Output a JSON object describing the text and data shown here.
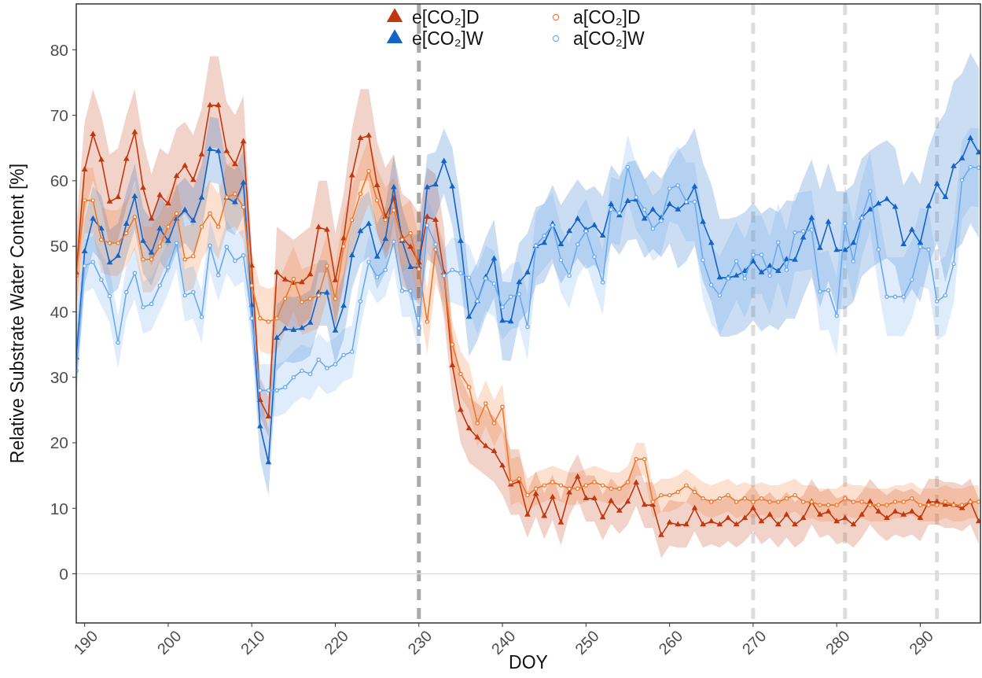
{
  "chart_data": {
    "type": "line",
    "xlabel": "DOY",
    "ylabel": "Relative Substrate Water Content [%]",
    "xlim": [
      189,
      297.2
    ],
    "ylim": [
      -7.5,
      87
    ],
    "xticks": [
      190,
      200,
      210,
      220,
      230,
      240,
      250,
      260,
      270,
      280,
      290
    ],
    "yticks": [
      0,
      10,
      20,
      30,
      40,
      50,
      60,
      70,
      80
    ],
    "legend": "top",
    "line_style": "solid",
    "x": [
      189,
      190,
      191,
      192,
      193,
      194,
      195,
      196,
      197,
      198,
      199,
      200,
      201,
      202,
      203,
      204,
      205,
      206,
      207,
      208,
      209,
      210,
      211,
      212,
      213,
      214,
      215,
      216,
      217,
      218,
      219,
      220,
      221,
      222,
      223,
      224,
      225,
      226,
      227,
      228,
      229,
      230,
      231,
      232,
      233,
      234,
      235,
      236,
      237,
      238,
      239,
      240,
      241,
      242,
      243,
      244,
      245,
      246,
      247,
      248,
      249,
      250,
      251,
      252,
      253,
      254,
      255,
      256,
      257,
      258,
      259,
      260,
      261,
      262,
      263,
      264,
      265,
      266,
      267,
      268,
      269,
      270,
      271,
      272,
      273,
      274,
      275,
      276,
      277,
      278,
      279,
      280,
      281,
      282,
      283,
      284,
      285,
      286,
      287,
      288,
      289,
      290,
      291,
      292,
      293,
      294,
      295,
      296,
      297
    ],
    "ref_lines": [
      {
        "axis": "x",
        "value": 230,
        "color": "#aaaaaa",
        "line_style": "dashed"
      },
      {
        "axis": "x",
        "value": 270,
        "color": "#dddddd",
        "line_style": "dashed"
      },
      {
        "axis": "x",
        "value": 281,
        "color": "#dddddd",
        "line_style": "dashed"
      },
      {
        "axis": "x",
        "value": 292,
        "color": "#dddddd",
        "line_style": "dashed"
      },
      {
        "axis": "y",
        "value": 0,
        "color": "#dadada",
        "line_style": "solid"
      }
    ],
    "series": [
      {
        "name": "e[CO₂]D",
        "color": "#c2380e",
        "marker": "triangle",
        "values": [
          46,
          61.7,
          67.1,
          63.2,
          56.8,
          57.5,
          63.3,
          67.4,
          58.9,
          54.2,
          57.8,
          56.5,
          60.7,
          62.3,
          60.1,
          64,
          71.5,
          71.5,
          64.5,
          62.5,
          66,
          47,
          26.5,
          24,
          46,
          44.9,
          44.4,
          44.5,
          45.7,
          52.9,
          52.5,
          44.8,
          51.2,
          60.8,
          66.5,
          66.9,
          59.3,
          54.5,
          57.3,
          51.3,
          49.9,
          47.5,
          54.5,
          54,
          46,
          31.8,
          25,
          22.2,
          20.8,
          19.5,
          18.7,
          16.5,
          13.6,
          14.1,
          9,
          12.2,
          8.8,
          11.7,
          7.8,
          12.4,
          14.8,
          11.5,
          11.5,
          8.6,
          11.1,
          9.6,
          11,
          13.9,
          10.5,
          10.5,
          5.9,
          7.8,
          7.5,
          7.5,
          10,
          7.5,
          8,
          7.5,
          8.5,
          7.5,
          8.5,
          10,
          8,
          9,
          7.5,
          9,
          7.5,
          8.5,
          11,
          9,
          9.5,
          8,
          8.5,
          7.5,
          9,
          11,
          9.5,
          8.5,
          9.5,
          9,
          9.5,
          8.5,
          11,
          11,
          10.5,
          10.5,
          10,
          11,
          8
        ],
        "lower": [
          39,
          55,
          60,
          56,
          50,
          51,
          56,
          60,
          52,
          47,
          51,
          50,
          54,
          55,
          53,
          57,
          65,
          65,
          58,
          56,
          59,
          44,
          24,
          21,
          39,
          38,
          37,
          38,
          39,
          46,
          46,
          38,
          44,
          54,
          60,
          60,
          52,
          48,
          50,
          44,
          43,
          41,
          48,
          47,
          39,
          27,
          20,
          17,
          16,
          15,
          14,
          12,
          9,
          9,
          5.5,
          8.7,
          5.3,
          8.2,
          4.3,
          8.9,
          11.3,
          8,
          8,
          5.1,
          7.6,
          6.1,
          7.5,
          10.4,
          7,
          7,
          2.4,
          4.3,
          4,
          4,
          6.5,
          4,
          4.5,
          4,
          5,
          4,
          5,
          6.5,
          4.5,
          5.5,
          4,
          5.5,
          4,
          5,
          7.5,
          5.5,
          6,
          4.5,
          5,
          4,
          5.5,
          7.5,
          6,
          5,
          6,
          5.5,
          6,
          5,
          7.5,
          7.5,
          7,
          7,
          6.5,
          7.5,
          4.5
        ],
        "upper": [
          53,
          69,
          74,
          70,
          64,
          65,
          70,
          74,
          66,
          61,
          65,
          64,
          68,
          69,
          67,
          71,
          79,
          79,
          72,
          70,
          73,
          50,
          30,
          27,
          53,
          52,
          51,
          52,
          53,
          60,
          60,
          52,
          58,
          68,
          74,
          74,
          66,
          62,
          64,
          58,
          57,
          55,
          62,
          61,
          53,
          37,
          30,
          27,
          26,
          25,
          24,
          22,
          19,
          19,
          12.5,
          15.7,
          12.3,
          15.2,
          11.3,
          15.9,
          18.3,
          15,
          15,
          12.1,
          14.6,
          13.1,
          14.5,
          17.4,
          14,
          14,
          9.4,
          11.3,
          11,
          11,
          13.5,
          11,
          11.5,
          11,
          12,
          11,
          12,
          13.5,
          11.5,
          12.5,
          11,
          12.5,
          11,
          12,
          14.5,
          12.5,
          13,
          11.5,
          12,
          11,
          12.5,
          14.5,
          13,
          12,
          13,
          12.5,
          13,
          12,
          14.5,
          14.5,
          14,
          14,
          13.5,
          14.5,
          11.5
        ]
      },
      {
        "name": "e[CO₂]W",
        "color": "#1464c8",
        "marker": "triangle",
        "values": [
          33,
          49.2,
          54.2,
          52.7,
          47.5,
          48.5,
          53.4,
          57.6,
          50.8,
          49,
          52.7,
          50.8,
          54.2,
          55.5,
          53.9,
          57.4,
          64.8,
          64.5,
          57.4,
          56.7,
          59.7,
          41,
          22.5,
          17,
          36,
          37.4,
          37.2,
          37.5,
          38.3,
          42.9,
          42.9,
          37.1,
          40.9,
          48.6,
          52.3,
          53.4,
          48.4,
          51.1,
          59,
          50.8,
          46.8,
          46.8,
          59,
          59.4,
          63,
          59.1,
          50.8,
          39.2,
          41.6,
          45.3,
          48.1,
          38.6,
          38.5,
          44.5,
          46,
          50,
          50.5,
          53.4,
          50.3,
          52.3,
          54.2,
          52.5,
          53.2,
          51.6,
          56.4,
          54.7,
          56.9,
          57.1,
          54.2,
          55.6,
          54.3,
          56.4,
          55.6,
          56.7,
          59.1,
          53.7,
          50.5,
          45.2,
          45.2,
          45.5,
          46.2,
          47.7,
          46,
          47,
          46.2,
          48,
          47.9,
          51.3,
          54.3,
          49.7,
          53.7,
          49.4,
          49.4,
          50.5,
          54.4,
          55.6,
          56.5,
          57.2,
          56,
          50.3,
          52.5,
          50.5,
          56.1,
          59.5,
          57.5,
          62.2,
          63.4,
          66.5,
          64.3
        ],
        "lower": [
          28,
          44.2,
          49.2,
          47.7,
          42.5,
          43.5,
          48.4,
          52.6,
          45.8,
          44,
          47.7,
          45.8,
          49.2,
          50.5,
          48.9,
          52.4,
          59.8,
          59.5,
          52.4,
          51.7,
          54.7,
          36,
          17.5,
          12,
          31,
          32.4,
          32.2,
          32.5,
          33.3,
          37.9,
          37.9,
          32.1,
          35.9,
          43.6,
          47.3,
          48.4,
          43.4,
          46.1,
          54,
          45.8,
          41.8,
          41.8,
          54,
          54.4,
          58,
          53.1,
          44.8,
          33.2,
          35.6,
          39.3,
          42.1,
          32.6,
          32.5,
          38.5,
          40,
          44,
          44.5,
          47.4,
          44.3,
          46.3,
          48.2,
          46.5,
          47.2,
          45.6,
          50.4,
          48.7,
          50.9,
          51.1,
          48.2,
          49.6,
          48.3,
          50.4,
          46.6,
          47.7,
          50.1,
          44.7,
          41.5,
          36.2,
          36.2,
          36.5,
          37.2,
          38.7,
          37,
          38,
          37.2,
          39,
          38.9,
          42.3,
          45.3,
          40.7,
          44.7,
          40.4,
          40.4,
          41.5,
          45.4,
          46.6,
          47.5,
          48.2,
          47,
          41.3,
          43.5,
          41.5,
          47.1,
          50.5,
          44.5,
          49.2,
          50.4,
          53.5,
          51.3
        ],
        "upper": [
          38,
          54.2,
          59.2,
          57.7,
          52.5,
          53.5,
          58.4,
          62.6,
          55.8,
          54,
          57.7,
          55.8,
          59.2,
          60.5,
          58.9,
          62.4,
          69.8,
          69.5,
          62.4,
          61.7,
          64.7,
          46,
          27.5,
          22,
          41,
          42.4,
          42.2,
          42.5,
          43.3,
          47.9,
          47.9,
          42.1,
          45.9,
          53.6,
          57.3,
          58.4,
          53.4,
          56.1,
          64,
          55.8,
          51.8,
          51.8,
          64,
          64.4,
          68,
          65.1,
          56.8,
          45.2,
          47.6,
          51.3,
          54.1,
          44.6,
          44.5,
          50.5,
          52,
          56,
          56.5,
          59.4,
          56.3,
          58.3,
          60.2,
          58.5,
          59.2,
          57.6,
          62.4,
          60.7,
          62.9,
          63.1,
          60.2,
          61.6,
          60.3,
          62.4,
          64.6,
          65.7,
          68.1,
          62.7,
          59.5,
          54.2,
          54.2,
          54.5,
          55.2,
          56.7,
          55,
          56,
          55.2,
          57,
          56.9,
          60.3,
          63.3,
          58.7,
          62.7,
          58.4,
          58.4,
          59.5,
          63.4,
          64.6,
          65.5,
          66.2,
          65,
          59.3,
          61.5,
          59.5,
          65.1,
          68.5,
          70.5,
          75.2,
          76.4,
          79.5,
          77.3
        ]
      },
      {
        "name": "a[CO₂]D",
        "color": "#f0782a",
        "marker": "circle",
        "values": [
          45.5,
          57,
          57,
          51,
          50.5,
          50.5,
          52,
          54.5,
          48,
          48,
          50,
          53,
          55,
          48,
          48.5,
          53,
          55,
          53,
          57.5,
          58,
          56,
          44,
          39,
          38.5,
          39,
          42,
          45,
          41.5,
          42,
          42.5,
          47,
          42,
          50,
          54,
          58,
          61.5,
          57,
          54,
          55.5,
          51,
          52,
          46.5,
          38.5,
          49.5,
          45.5,
          35,
          30.5,
          28.5,
          23,
          26,
          23,
          25.5,
          14,
          14.5,
          12,
          13,
          13.5,
          14,
          13.5,
          13,
          13,
          13.5,
          14,
          13.5,
          13,
          13,
          14,
          17.5,
          17.5,
          11,
          12,
          12,
          12.5,
          13.5,
          12.5,
          11.5,
          11,
          11.5,
          12,
          11,
          11.5,
          11,
          11.5,
          11,
          11,
          11.5,
          12,
          11,
          11,
          10.5,
          10.5,
          10.5,
          11.5,
          11,
          11,
          10.5,
          10.5,
          10.5,
          11,
          11,
          11.5,
          10.5,
          10.5,
          10.5,
          11,
          10.5,
          10.5,
          11,
          11
        ],
        "lower": [
          40.5,
          52,
          52,
          46,
          45.5,
          45.5,
          47,
          49.5,
          43,
          43,
          45,
          48,
          50,
          43,
          43.5,
          48,
          50,
          48,
          52.5,
          53,
          51,
          39,
          34,
          33.5,
          34,
          37,
          40,
          36.5,
          37,
          37.5,
          42,
          37,
          45,
          49,
          53,
          56.5,
          52,
          49,
          50.5,
          46,
          47,
          41.5,
          33.5,
          44.5,
          40.5,
          31.5,
          27,
          25,
          19.5,
          22.5,
          19.5,
          22,
          10.5,
          11,
          9.5,
          10.5,
          11,
          11.5,
          11,
          10.5,
          10.5,
          11,
          11.5,
          11,
          10.5,
          10.5,
          11.5,
          15,
          15,
          8.5,
          9.5,
          9.5,
          10,
          11,
          10,
          9,
          8.5,
          9,
          9.5,
          8.5,
          9,
          8.5,
          9,
          8.5,
          8.5,
          9,
          9.5,
          8.5,
          8.5,
          8,
          8,
          8,
          9,
          8.5,
          8.5,
          8,
          8,
          8,
          8.5,
          8.5,
          9,
          8,
          8,
          8,
          8.5,
          8,
          8,
          8.5,
          8.5
        ],
        "upper": [
          50.5,
          62,
          62,
          56,
          55.5,
          55.5,
          57,
          59.5,
          53,
          53,
          55,
          58,
          60,
          53,
          53.5,
          58,
          60,
          58,
          62.5,
          63,
          61,
          49,
          44,
          43.5,
          44,
          47,
          50,
          46.5,
          47,
          47.5,
          52,
          47,
          55,
          59,
          63,
          66.5,
          62,
          59,
          60.5,
          56,
          57,
          51.5,
          43.5,
          54.5,
          50.5,
          38.5,
          34,
          32,
          26.5,
          29.5,
          26.5,
          29,
          17.5,
          18,
          14.5,
          15.5,
          16,
          16.5,
          16,
          15.5,
          15.5,
          16,
          16.5,
          16,
          15.5,
          15.5,
          16.5,
          20,
          20,
          13.5,
          14.5,
          14.5,
          15,
          16,
          15,
          14,
          13.5,
          14,
          14.5,
          13.5,
          14,
          13.5,
          14,
          13.5,
          13.5,
          14,
          14.5,
          13.5,
          13.5,
          13,
          13,
          13,
          14,
          13.5,
          13.5,
          13,
          13,
          13,
          13.5,
          13.5,
          14,
          13,
          13,
          13,
          13.5,
          13,
          13,
          13.5,
          13.5
        ]
      },
      {
        "name": "a[CO₂]W",
        "color": "#6aaaf0",
        "marker": "circle",
        "values": [
          31,
          47,
          47.6,
          44.9,
          42.4,
          35.3,
          43,
          45.9,
          40.7,
          41.2,
          44,
          46.8,
          50.5,
          42.5,
          43,
          39.2,
          50.1,
          45.6,
          49.9,
          47.8,
          48.6,
          39,
          28,
          28,
          28,
          28.5,
          30,
          31,
          30.5,
          32.7,
          31.4,
          32,
          33.4,
          33.9,
          41.6,
          47.6,
          45.3,
          46.4,
          50.7,
          43.2,
          43.2,
          37.5,
          53.2,
          50.3,
          45.5,
          46.4,
          45.9,
          45.2,
          41.6,
          45.1,
          44.3,
          40.7,
          42.3,
          42.7,
          37.7,
          50.1,
          51.6,
          53.2,
          47.9,
          45.5,
          50.3,
          52.3,
          48.4,
          44.5,
          55.6,
          55.1,
          62.1,
          57.5,
          55.6,
          52.7,
          53.9,
          58.8,
          59.3,
          56.8,
          56.8,
          47.9,
          44.1,
          42.5,
          45.1,
          47.7,
          45.1,
          48.7,
          48.7,
          45.5,
          50.6,
          46.4,
          52.1,
          52.3,
          52.5,
          43.1,
          43.3,
          39.4,
          53.5,
          47.7,
          54.3,
          58.4,
          49.5,
          42.3,
          42.3,
          42.3,
          44.9,
          49.9,
          49.5,
          41.6,
          42.5,
          47.3,
          60.1,
          62.1,
          62
        ],
        "lower": [
          27,
          43,
          43.6,
          40.9,
          38.4,
          31.3,
          39,
          41.9,
          36.7,
          37.2,
          40,
          42.8,
          46.5,
          38.5,
          39,
          35.2,
          46.1,
          41.6,
          45.9,
          43.8,
          44.6,
          35,
          24,
          24,
          24,
          24.5,
          26,
          27,
          26.5,
          28.7,
          27.4,
          28,
          29.4,
          29.9,
          37.6,
          43.6,
          41.3,
          42.4,
          46.7,
          39.2,
          39.2,
          33.5,
          49.2,
          46.3,
          41.5,
          41.4,
          40.9,
          40.2,
          36.6,
          40.1,
          39.3,
          35.7,
          37.3,
          37.7,
          32.7,
          45.1,
          46.6,
          48.2,
          42.9,
          40.5,
          45.3,
          47.3,
          43.4,
          39.5,
          50.6,
          50.1,
          57.1,
          52.5,
          50.6,
          47.7,
          48.9,
          53.8,
          53.3,
          50.8,
          50.8,
          41.9,
          38.1,
          36.5,
          39.1,
          41.7,
          39.1,
          42.7,
          42.7,
          39.5,
          44.6,
          40.4,
          46.1,
          46.3,
          46.5,
          37.1,
          37.3,
          33.4,
          47.5,
          41.7,
          48.3,
          52.4,
          43.5,
          36.3,
          36.3,
          36.3,
          38.9,
          43.9,
          43.5,
          35.6,
          36.5,
          41.3,
          54.1,
          56.1,
          56
        ],
        "upper": [
          35,
          51,
          51.6,
          48.9,
          46.4,
          39.3,
          47,
          49.9,
          44.7,
          45.2,
          48,
          50.8,
          54.5,
          46.5,
          47,
          43.2,
          54.1,
          49.6,
          53.9,
          51.8,
          52.6,
          43,
          32,
          32,
          32,
          32.5,
          34,
          35,
          34.5,
          36.7,
          35.4,
          36,
          37.4,
          37.9,
          45.6,
          51.6,
          49.3,
          50.4,
          54.7,
          47.2,
          47.2,
          41.5,
          57.2,
          54.3,
          49.5,
          51.4,
          50.9,
          50.2,
          46.6,
          50.1,
          49.3,
          45.7,
          47.3,
          47.7,
          42.7,
          55.1,
          56.6,
          58.2,
          52.9,
          50.5,
          55.3,
          57.3,
          53.4,
          49.5,
          60.6,
          60.1,
          67.1,
          62.5,
          60.6,
          57.7,
          58.9,
          63.8,
          65.3,
          62.8,
          62.8,
          53.9,
          50.1,
          48.5,
          51.1,
          53.7,
          51.1,
          54.7,
          54.7,
          51.5,
          56.6,
          52.4,
          58.1,
          58.3,
          58.5,
          49.1,
          49.3,
          45.4,
          59.5,
          53.7,
          60.3,
          64.4,
          55.5,
          48.3,
          48.3,
          48.3,
          50.9,
          55.9,
          55.5,
          47.6,
          48.5,
          53.3,
          66.1,
          68.1,
          68
        ]
      }
    ]
  }
}
